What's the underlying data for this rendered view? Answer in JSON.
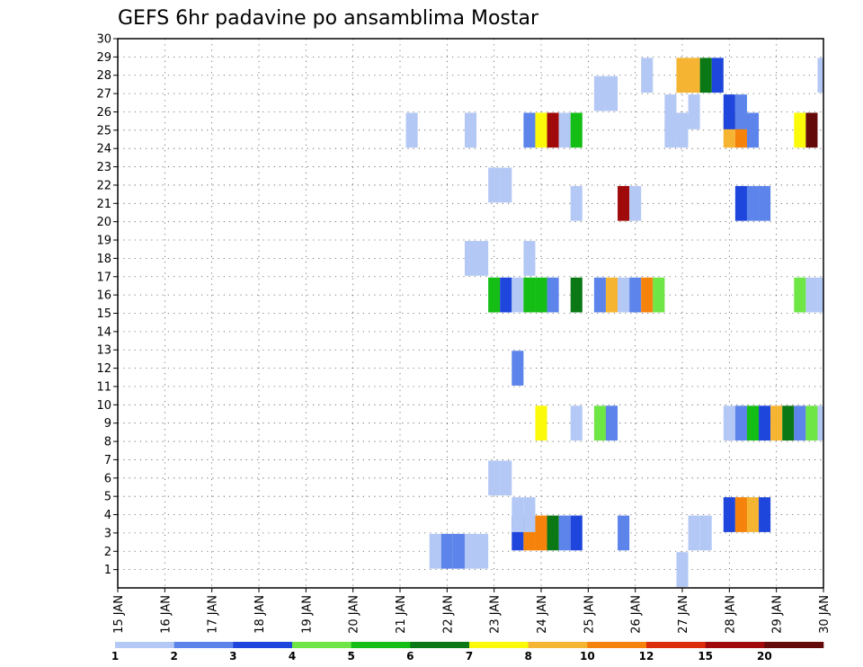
{
  "chart_data": {
    "type": "heatmap",
    "title": "GEFS 6hr padavine po ansamblima Mostar",
    "x_dates": [
      "15 JAN",
      "16 JAN",
      "17 JAN",
      "18 JAN",
      "19 JAN",
      "20 JAN",
      "21 JAN",
      "22 JAN",
      "23 JAN",
      "24 JAN",
      "25 JAN",
      "26 JAN",
      "27 JAN",
      "28 JAN",
      "29 JAN",
      "30 JAN"
    ],
    "y_members": [
      "1",
      "2",
      "3",
      "4",
      "5",
      "6",
      "7",
      "8",
      "9",
      "10",
      "11",
      "12",
      "13",
      "14",
      "15",
      "16",
      "17",
      "18",
      "19",
      "20",
      "21",
      "22",
      "23",
      "24",
      "25",
      "26",
      "27",
      "28",
      "29",
      "30"
    ],
    "time_step_hours": 6,
    "grid": true,
    "colorbar": {
      "labels": [
        "1",
        "2",
        "3",
        "4",
        "5",
        "6",
        "7",
        "8",
        "10",
        "12",
        "15",
        "20"
      ],
      "colors": [
        "#b4c8f5",
        "#5c84ea",
        "#1e46dc",
        "#6ee646",
        "#14be14",
        "#0a7814",
        "#fafa0a",
        "#f5b432",
        "#f5820a",
        "#dc2d0a",
        "#a00a0a",
        "#640a0a"
      ]
    },
    "cells": [
      {
        "member": 1,
        "day": 27.0,
        "color": "#b4c8f5"
      },
      {
        "member": 2,
        "day": 21.75,
        "color": "#b4c8f5"
      },
      {
        "member": 2,
        "day": 22.0,
        "color": "#5c84ea"
      },
      {
        "member": 2,
        "day": 22.25,
        "color": "#5c84ea"
      },
      {
        "member": 2,
        "day": 22.5,
        "color": "#b4c8f5"
      },
      {
        "member": 2,
        "day": 22.75,
        "color": "#b4c8f5"
      },
      {
        "member": 3,
        "day": 23.5,
        "color": "#1e46dc"
      },
      {
        "member": 3,
        "day": 23.75,
        "color": "#f5820a"
      },
      {
        "member": 3,
        "day": 24.0,
        "color": "#f5820a"
      },
      {
        "member": 3,
        "day": 24.25,
        "color": "#0a7814"
      },
      {
        "member": 3,
        "day": 24.5,
        "color": "#5c84ea"
      },
      {
        "member": 3,
        "day": 24.75,
        "color": "#1e46dc"
      },
      {
        "member": 3,
        "day": 25.75,
        "color": "#5c84ea"
      },
      {
        "member": 3,
        "day": 27.25,
        "color": "#b4c8f5"
      },
      {
        "member": 3,
        "day": 27.5,
        "color": "#b4c8f5"
      },
      {
        "member": 4,
        "day": 23.5,
        "color": "#b4c8f5"
      },
      {
        "member": 4,
        "day": 23.75,
        "color": "#b4c8f5"
      },
      {
        "member": 4,
        "day": 28.0,
        "color": "#1e46dc"
      },
      {
        "member": 4,
        "day": 28.25,
        "color": "#f5820a"
      },
      {
        "member": 4,
        "day": 28.5,
        "color": "#f5b432"
      },
      {
        "member": 4,
        "day": 28.75,
        "color": "#1e46dc"
      },
      {
        "member": 6,
        "day": 23.0,
        "color": "#b4c8f5"
      },
      {
        "member": 6,
        "day": 23.25,
        "color": "#b4c8f5"
      },
      {
        "member": 9,
        "day": 24.0,
        "color": "#fafa0a"
      },
      {
        "member": 9,
        "day": 24.75,
        "color": "#b4c8f5"
      },
      {
        "member": 9,
        "day": 25.25,
        "color": "#6ee646"
      },
      {
        "member": 9,
        "day": 25.5,
        "color": "#5c84ea"
      },
      {
        "member": 9,
        "day": 28.0,
        "color": "#b4c8f5"
      },
      {
        "member": 9,
        "day": 28.25,
        "color": "#5c84ea"
      },
      {
        "member": 9,
        "day": 28.5,
        "color": "#14be14"
      },
      {
        "member": 9,
        "day": 28.75,
        "color": "#1e46dc"
      },
      {
        "member": 9,
        "day": 29.0,
        "color": "#f5b432"
      },
      {
        "member": 9,
        "day": 29.25,
        "color": "#0a7814"
      },
      {
        "member": 9,
        "day": 29.5,
        "color": "#5c84ea"
      },
      {
        "member": 9,
        "day": 29.75,
        "color": "#6ee646"
      },
      {
        "member": 9,
        "day": 30.0,
        "color": "#b4c8f5"
      },
      {
        "member": 12,
        "day": 23.5,
        "color": "#5c84ea"
      },
      {
        "member": 16,
        "day": 23.0,
        "color": "#14be14"
      },
      {
        "member": 16,
        "day": 23.25,
        "color": "#1e46dc"
      },
      {
        "member": 16,
        "day": 23.5,
        "color": "#b4c8f5"
      },
      {
        "member": 16,
        "day": 23.75,
        "color": "#14be14"
      },
      {
        "member": 16,
        "day": 24.0,
        "color": "#14be14"
      },
      {
        "member": 16,
        "day": 24.25,
        "color": "#5c84ea"
      },
      {
        "member": 16,
        "day": 24.75,
        "color": "#0a7814"
      },
      {
        "member": 16,
        "day": 25.25,
        "color": "#5c84ea"
      },
      {
        "member": 16,
        "day": 25.5,
        "color": "#f5b432"
      },
      {
        "member": 16,
        "day": 25.75,
        "color": "#b4c8f5"
      },
      {
        "member": 16,
        "day": 26.0,
        "color": "#5c84ea"
      },
      {
        "member": 16,
        "day": 26.25,
        "color": "#f5820a"
      },
      {
        "member": 16,
        "day": 26.5,
        "color": "#6ee646"
      },
      {
        "member": 16,
        "day": 29.5,
        "color": "#6ee646"
      },
      {
        "member": 16,
        "day": 29.75,
        "color": "#b4c8f5"
      },
      {
        "member": 16,
        "day": 30.0,
        "color": "#b4c8f5"
      },
      {
        "member": 18,
        "day": 22.5,
        "color": "#b4c8f5"
      },
      {
        "member": 18,
        "day": 22.75,
        "color": "#b4c8f5"
      },
      {
        "member": 18,
        "day": 23.75,
        "color": "#b4c8f5"
      },
      {
        "member": 21,
        "day": 24.75,
        "color": "#b4c8f5"
      },
      {
        "member": 21,
        "day": 25.75,
        "color": "#a00a0a"
      },
      {
        "member": 21,
        "day": 26.0,
        "color": "#b4c8f5"
      },
      {
        "member": 21,
        "day": 28.25,
        "color": "#1e46dc"
      },
      {
        "member": 21,
        "day": 28.5,
        "color": "#5c84ea"
      },
      {
        "member": 21,
        "day": 28.75,
        "color": "#5c84ea"
      },
      {
        "member": 22,
        "day": 23.0,
        "color": "#b4c8f5"
      },
      {
        "member": 22,
        "day": 23.25,
        "color": "#b4c8f5"
      },
      {
        "member": 25,
        "day": 21.25,
        "color": "#b4c8f5"
      },
      {
        "member": 25,
        "day": 22.5,
        "color": "#b4c8f5"
      },
      {
        "member": 25,
        "day": 23.75,
        "color": "#5c84ea"
      },
      {
        "member": 25,
        "day": 24.0,
        "color": "#fafa0a"
      },
      {
        "member": 25,
        "day": 24.25,
        "color": "#a00a0a"
      },
      {
        "member": 25,
        "day": 24.5,
        "color": "#b4c8f5"
      },
      {
        "member": 25,
        "day": 24.75,
        "color": "#14be14"
      },
      {
        "member": 25,
        "day": 26.75,
        "color": "#b4c8f5"
      },
      {
        "member": 25,
        "day": 27.0,
        "color": "#b4c8f5"
      },
      {
        "member": 25,
        "day": 28.0,
        "color": "#f5b432"
      },
      {
        "member": 25,
        "day": 28.25,
        "color": "#f5820a"
      },
      {
        "member": 25,
        "day": 28.5,
        "color": "#5c84ea"
      },
      {
        "member": 25,
        "day": 29.5,
        "color": "#fafa0a"
      },
      {
        "member": 25,
        "day": 29.75,
        "color": "#640a0a"
      },
      {
        "member": 26,
        "day": 26.75,
        "color": "#b4c8f5"
      },
      {
        "member": 26,
        "day": 27.25,
        "color": "#b4c8f5"
      },
      {
        "member": 26,
        "day": 28.0,
        "color": "#1e46dc"
      },
      {
        "member": 26,
        "day": 28.25,
        "color": "#5c84ea"
      },
      {
        "member": 27,
        "day": 25.25,
        "color": "#b4c8f5"
      },
      {
        "member": 27,
        "day": 25.5,
        "color": "#b4c8f5"
      },
      {
        "member": 28,
        "day": 26.25,
        "color": "#b4c8f5"
      },
      {
        "member": 28,
        "day": 27.0,
        "color": "#f5b432"
      },
      {
        "member": 28,
        "day": 27.25,
        "color": "#f5b432"
      },
      {
        "member": 28,
        "day": 27.5,
        "color": "#0a7814"
      },
      {
        "member": 28,
        "day": 27.75,
        "color": "#1e46dc"
      },
      {
        "member": 28,
        "day": 30.0,
        "color": "#b4c8f5"
      }
    ]
  }
}
